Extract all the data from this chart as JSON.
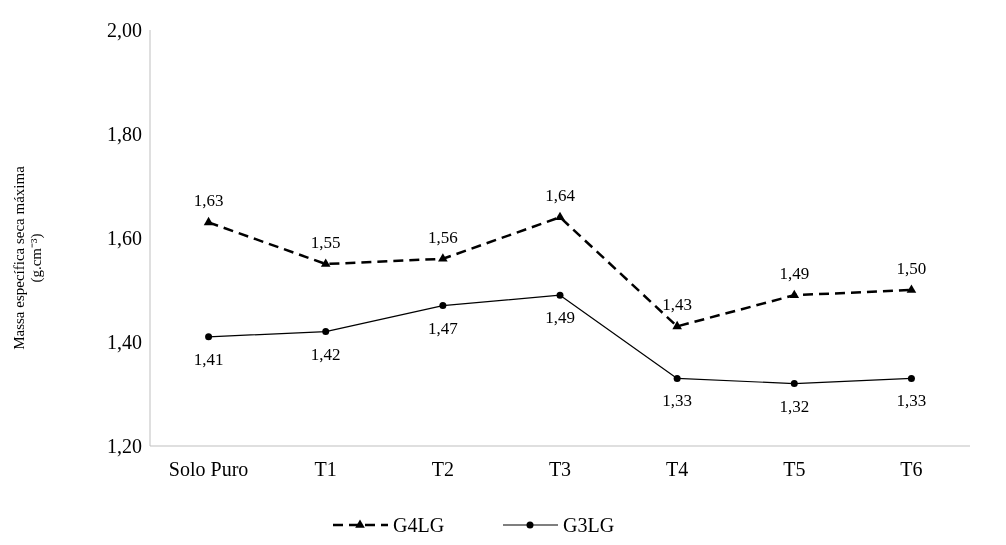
{
  "chart_data": {
    "type": "line",
    "ylabel": "Massa específica seca máxima (g.cm⁻³)",
    "categories": [
      "Solo Puro",
      "T1",
      "T2",
      "T3",
      "T4",
      "T5",
      "T6"
    ],
    "series": [
      {
        "name": "G4LG",
        "color": "#000000",
        "values": [
          1.63,
          1.55,
          1.56,
          1.64,
          1.43,
          1.49,
          1.5
        ],
        "value_labels": [
          "1,63",
          "1,55",
          "1,56",
          "1,64",
          "1,43",
          "1,49",
          "1,50"
        ],
        "marker": "triangle",
        "line_style": "dashed"
      },
      {
        "name": "G3LG",
        "color": "#000000",
        "values": [
          1.41,
          1.42,
          1.47,
          1.49,
          1.33,
          1.32,
          1.33
        ],
        "value_labels": [
          "1,41",
          "1,42",
          "1,47",
          "1,49",
          "1,33",
          "1,32",
          "1,33"
        ],
        "marker": "circle",
        "line_style": "solid"
      }
    ],
    "ylim": [
      1.2,
      2.0
    ],
    "yticks": [
      {
        "value": 1.2,
        "label": "1,20"
      },
      {
        "value": 1.4,
        "label": "1,40"
      },
      {
        "value": 1.6,
        "label": "1,60"
      },
      {
        "value": 1.8,
        "label": "1,80"
      },
      {
        "value": 2.0,
        "label": "2,00"
      }
    ],
    "legend": "bottom",
    "grid": false
  }
}
